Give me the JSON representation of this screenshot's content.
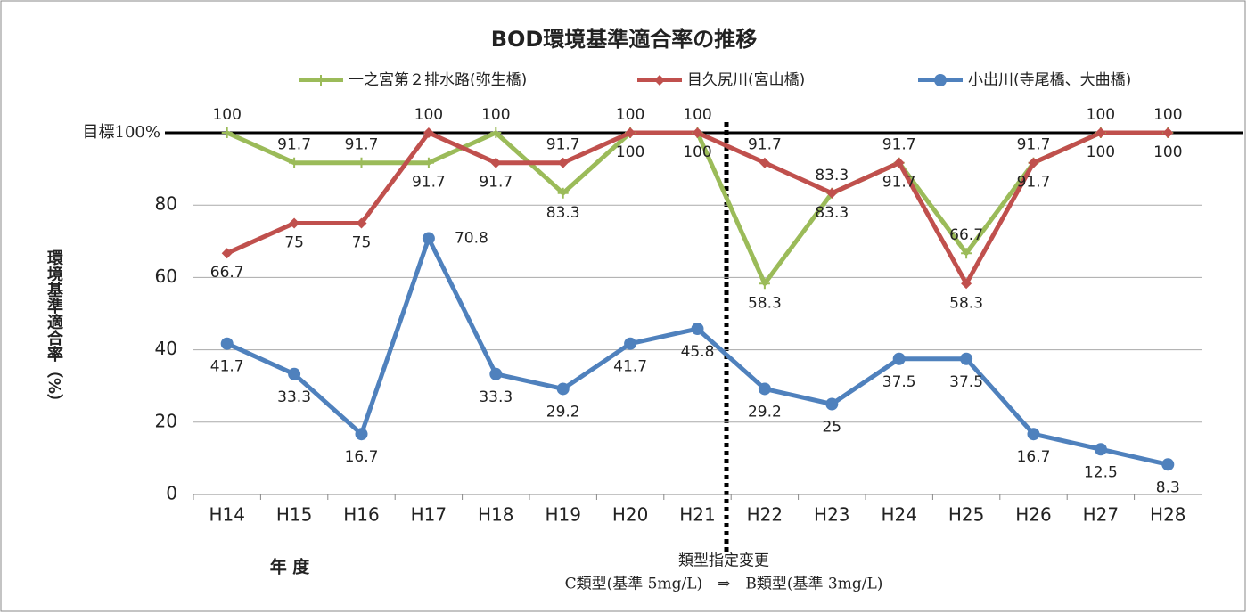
{
  "chart_data": {
    "type": "line",
    "title": "BOD環境基準適合率の推移",
    "y_label": "環境基準適合率（%）",
    "x_label": "年 度",
    "annotations": [
      "類型指定変更",
      "C類型(基準 5mg/L)　⇒　B類型(基準 3mg/L)"
    ],
    "categories": [
      "H14",
      "H15",
      "H16",
      "H17",
      "H18",
      "H19",
      "H20",
      "H21",
      "H22",
      "H23",
      "H24",
      "H25",
      "H26",
      "H27",
      "H28"
    ],
    "series": [
      {
        "name": "一之宮第２排水路(弥生橋)",
        "color": "#9bbb59",
        "values": [
          100,
          91.7,
          91.7,
          91.7,
          100,
          83.3,
          100,
          100,
          58.3,
          83.3,
          91.7,
          66.7,
          91.7,
          100,
          100
        ]
      },
      {
        "name": "目久尻川(宮山橋)",
        "color": "#c0504d",
        "values": [
          66.7,
          75,
          75,
          100,
          91.7,
          91.7,
          100,
          100,
          91.7,
          83.3,
          91.7,
          58.3,
          91.7,
          100,
          100
        ]
      },
      {
        "name": "小出川(寺尾橋、大曲橋)",
        "color": "#4f81bd",
        "values": [
          41.7,
          33.3,
          16.7,
          70.8,
          33.3,
          29.2,
          41.7,
          45.8,
          29.2,
          25,
          37.5,
          37.5,
          16.7,
          12.5,
          8.3
        ]
      }
    ],
    "ylim": [
      0,
      100
    ],
    "yticks": [
      0,
      20,
      40,
      60,
      80,
      {
        "value": 100,
        "label": "目標100%"
      }
    ],
    "grid": true,
    "legend": "top"
  }
}
